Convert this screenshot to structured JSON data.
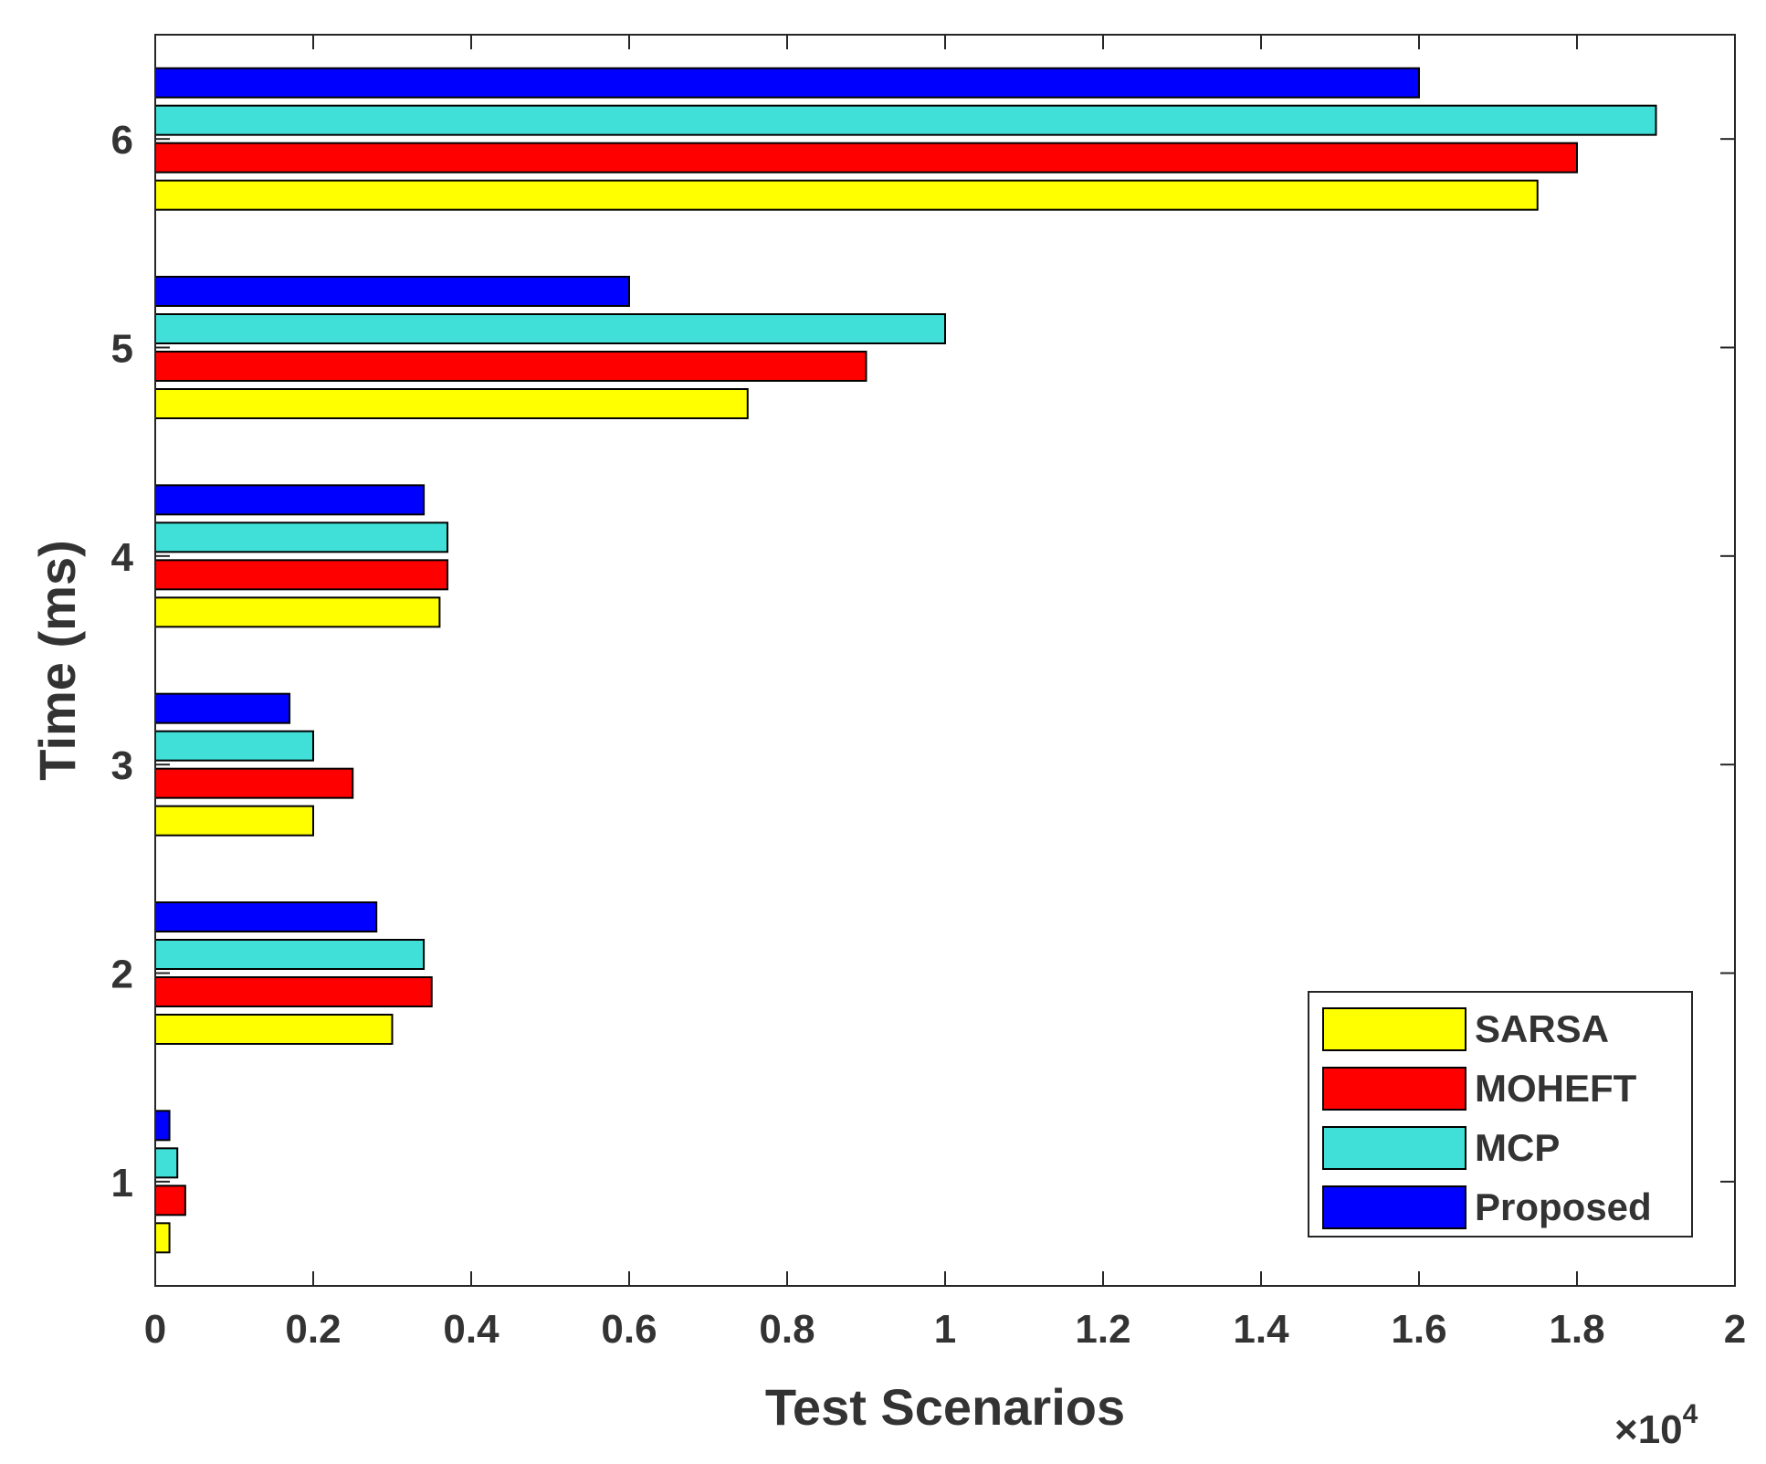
{
  "chart_data": {
    "type": "bar",
    "orientation": "horizontal",
    "title": "",
    "xlabel": "Test Scenarios",
    "ylabel": "Time (ms)",
    "x_multiplier": "×10",
    "x_multiplier_exponent": "4",
    "xlim": [
      0,
      2
    ],
    "x_ticks": [
      "0",
      "0.2",
      "0.4",
      "0.6",
      "0.8",
      "1",
      "1.2",
      "1.4",
      "1.6",
      "1.8",
      "2"
    ],
    "categories": [
      "1",
      "2",
      "3",
      "4",
      "5",
      "6"
    ],
    "series": [
      {
        "name": "SARSA",
        "color": "#ffff00",
        "values": [
          0.018,
          0.3,
          0.2,
          0.36,
          0.75,
          1.75
        ]
      },
      {
        "name": "MOHEFT",
        "color": "#ff0000",
        "values": [
          0.038,
          0.35,
          0.25,
          0.37,
          0.9,
          1.8
        ]
      },
      {
        "name": "MCP",
        "color": "#40e0d8",
        "values": [
          0.028,
          0.34,
          0.2,
          0.37,
          1.0,
          1.9
        ]
      },
      {
        "name": "Proposed",
        "color": "#0000ff",
        "values": [
          0.018,
          0.28,
          0.17,
          0.34,
          0.6,
          1.6
        ]
      }
    ],
    "legend_position": "bottom-right",
    "grid": false
  }
}
